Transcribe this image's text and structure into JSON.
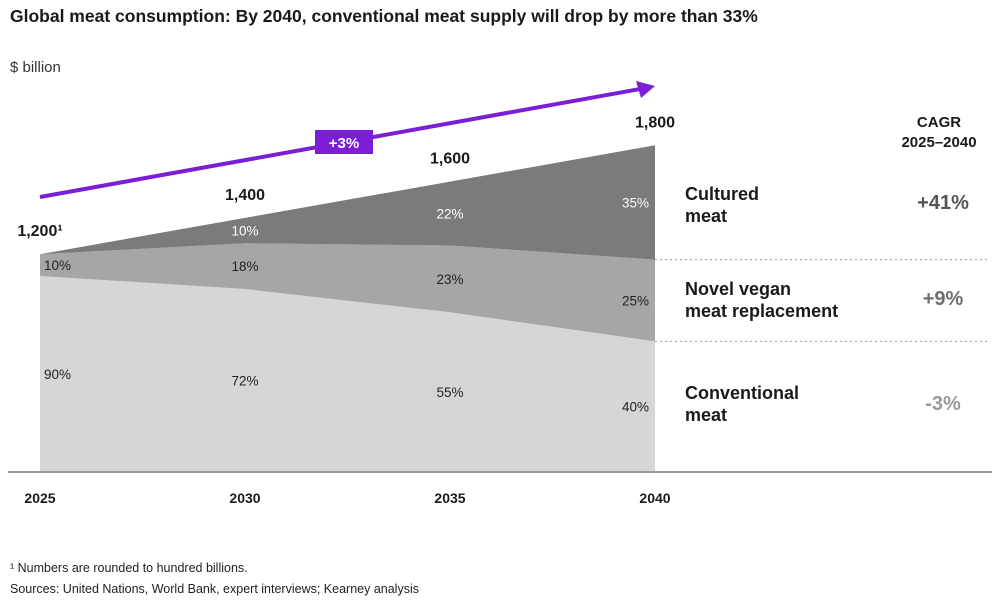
{
  "title": "Global meat consumption: By 2040, conventional meat supply will drop by more than 33%",
  "unit": "$ billion",
  "growth_badge": "+3%",
  "cagr_header_line1": "CAGR",
  "cagr_header_line2": "2025–2040",
  "segments": [
    {
      "label_line1": "Cultured",
      "label_line2": "meat",
      "cagr": "+41%",
      "cagr_color": "#555555"
    },
    {
      "label_line1": "Novel vegan",
      "label_line2": "meat replacement",
      "cagr": "+9%",
      "cagr_color": "#6e6e6e"
    },
    {
      "label_line1": "Conventional",
      "label_line2": "meat",
      "cagr": "-3%",
      "cagr_color": "#9a9a9a"
    }
  ],
  "footnote": "¹ Numbers are rounded to hundred billions.",
  "sources": "Sources: United Nations, World Bank, expert interviews; Kearney analysis",
  "colors": {
    "conventional": "#d6d6d6",
    "novel_vegan": "#a6a6a6",
    "cultured": "#7b7b7b",
    "arrow": "#7a1fd6",
    "axis": "#999999"
  },
  "chart_data": {
    "type": "area",
    "stacked": true,
    "x": [
      "2025",
      "2030",
      "2035",
      "2040"
    ],
    "totals": [
      1200,
      1400,
      1600,
      1800
    ],
    "total_labels": [
      "1,200¹",
      "1,400",
      "1,600",
      "1,800"
    ],
    "ylabel": "$ billion",
    "series": [
      {
        "name": "Conventional meat",
        "shares": [
          90,
          72,
          55,
          40
        ],
        "labels": [
          "90%",
          "72%",
          "55%",
          "40%"
        ]
      },
      {
        "name": "Novel vegan meat replacement",
        "shares": [
          10,
          18,
          23,
          25
        ],
        "labels": [
          "10%",
          "18%",
          "23%",
          "25%"
        ]
      },
      {
        "name": "Cultured meat",
        "shares": [
          0,
          10,
          22,
          35
        ],
        "labels": [
          "",
          "10%",
          "22%",
          "35%"
        ]
      }
    ],
    "grid": false
  }
}
